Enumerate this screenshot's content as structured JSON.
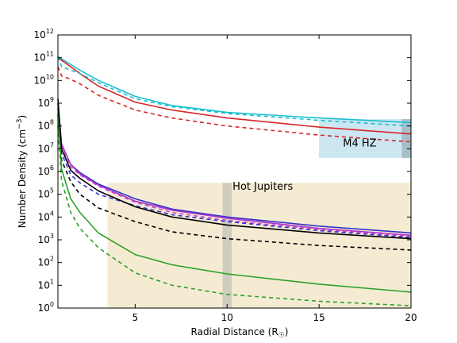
{
  "chart_data": {
    "type": "line",
    "xlabel_main": "Radial Distance (R",
    "xlabel_sub": "☉",
    "xlabel_end": ")",
    "ylabel_main": "Number Density (cm",
    "ylabel_sup": "−3",
    "ylabel_end": ")",
    "xlim": [
      0.8,
      20
    ],
    "ylim_log10": [
      0,
      12
    ],
    "y_scale": "log",
    "x_ticks": [
      5,
      10,
      15,
      20
    ],
    "x_tick_labels": [
      "5",
      "10",
      "15",
      "20"
    ],
    "y_tick_exponents": [
      0,
      1,
      2,
      3,
      4,
      5,
      6,
      7,
      8,
      9,
      10,
      11,
      12
    ],
    "y_tick_base": "10",
    "regions": [
      {
        "name": "Hot Jupiters",
        "x_range": [
          3.5,
          20
        ],
        "y_range_log10": [
          0,
          5.5
        ],
        "color": "#f5ebd3"
      },
      {
        "name": "M4 HZ",
        "x_range": [
          15,
          20
        ],
        "y_range_log10": [
          6.6,
          8.3
        ],
        "color": "#cde7f2"
      },
      {
        "name": "",
        "x_range": [
          9.75,
          10.25
        ],
        "y_range_log10": [
          0,
          5.5
        ],
        "color": "#cfcdbf"
      },
      {
        "name": "",
        "x_range": [
          19.5,
          20
        ],
        "y_range_log10": [
          6.6,
          8.3
        ],
        "color": "#a8bfca"
      }
    ],
    "annotations": [
      {
        "text": "Hot Jupiters",
        "x": 10.3,
        "y_log10": 5.2
      },
      {
        "text": "M4 HZ",
        "x": 16.3,
        "y_log10": 7.1
      }
    ],
    "series": [
      {
        "color": "#17becf",
        "style": "solid",
        "x": [
          0.8,
          1.5,
          2,
          3,
          5,
          7,
          10,
          15,
          20
        ],
        "y_log10": [
          11.05,
          10.7,
          10.45,
          10.0,
          9.3,
          8.9,
          8.6,
          8.35,
          8.15
        ]
      },
      {
        "color": "#d62728",
        "style": "solid",
        "x": [
          0.8,
          1.5,
          2,
          3,
          5,
          7,
          10,
          15,
          20
        ],
        "y_log10": [
          11.0,
          10.6,
          10.3,
          9.75,
          9.05,
          8.7,
          8.35,
          7.95,
          7.65
        ]
      },
      {
        "color": "#17becf",
        "style": "dashed",
        "x": [
          0.8,
          1,
          1.5,
          2,
          3,
          5,
          7,
          10,
          15,
          20
        ],
        "y_log10": [
          11.05,
          10.6,
          10.45,
          10.3,
          9.9,
          9.2,
          8.85,
          8.55,
          8.25,
          8.0
        ]
      },
      {
        "color": "#d62728",
        "style": "dashed",
        "x": [
          0.8,
          1,
          1.5,
          2,
          3,
          5,
          7,
          10,
          15,
          20
        ],
        "y_log10": [
          10.6,
          10.2,
          10.05,
          9.85,
          9.35,
          8.7,
          8.35,
          8.0,
          7.6,
          7.3
        ]
      },
      {
        "color": "#3333cc",
        "style": "solid",
        "x": [
          0.8,
          1,
          1.5,
          2,
          3,
          5,
          7,
          10,
          15,
          20
        ],
        "y_log10": [
          9.0,
          7.2,
          6.3,
          5.95,
          5.45,
          4.8,
          4.35,
          4.0,
          3.6,
          3.3
        ]
      },
      {
        "color": "#aa33cc",
        "style": "solid",
        "x": [
          0.8,
          1,
          1.5,
          2,
          3,
          5,
          7,
          10,
          15,
          20
        ],
        "y_log10": [
          9.0,
          7.2,
          6.3,
          5.9,
          5.4,
          4.7,
          4.3,
          3.95,
          3.5,
          3.2
        ]
      },
      {
        "color": "#cc44cc",
        "style": "dashed",
        "x": [
          0.8,
          1,
          1.5,
          2,
          3,
          5,
          7,
          10,
          15,
          20
        ],
        "y_log10": [
          9.0,
          7.1,
          6.2,
          5.85,
          5.35,
          4.65,
          4.2,
          3.85,
          3.45,
          3.15
        ]
      },
      {
        "color": "#3333cc",
        "style": "dashed",
        "x": [
          0.8,
          1,
          1.5,
          2,
          3,
          5,
          7,
          10,
          15,
          20
        ],
        "y_log10": [
          8.8,
          6.8,
          5.85,
          5.5,
          5.0,
          4.5,
          4.1,
          3.8,
          3.4,
          3.1
        ]
      },
      {
        "color": "#000000",
        "style": "solid",
        "x": [
          0.8,
          1,
          1.5,
          2,
          3,
          5,
          7,
          10,
          15,
          20
        ],
        "y_log10": [
          9.2,
          7.0,
          6.05,
          5.7,
          5.15,
          4.45,
          4.0,
          3.65,
          3.3,
          3.05
        ]
      },
      {
        "color": "#000000",
        "style": "dashed",
        "x": [
          0.8,
          1,
          1.5,
          2,
          3,
          5,
          7,
          10,
          15,
          20
        ],
        "y_log10": [
          8.5,
          6.5,
          5.55,
          5.0,
          4.4,
          3.8,
          3.35,
          3.05,
          2.75,
          2.55
        ]
      },
      {
        "color": "#2ca02c",
        "style": "solid",
        "x": [
          0.8,
          1,
          1.5,
          2,
          3,
          5,
          7,
          10,
          15,
          20
        ],
        "y_log10": [
          8.5,
          6.1,
          4.8,
          4.2,
          3.3,
          2.35,
          1.9,
          1.5,
          1.05,
          0.7
        ]
      },
      {
        "color": "#2ca02c",
        "style": "dashed",
        "x": [
          0.8,
          1,
          1.5,
          2,
          3,
          5,
          7,
          10,
          15,
          20
        ],
        "y_log10": [
          8.0,
          5.6,
          4.2,
          3.5,
          2.65,
          1.55,
          1.0,
          0.6,
          0.3,
          0.1
        ]
      }
    ]
  }
}
